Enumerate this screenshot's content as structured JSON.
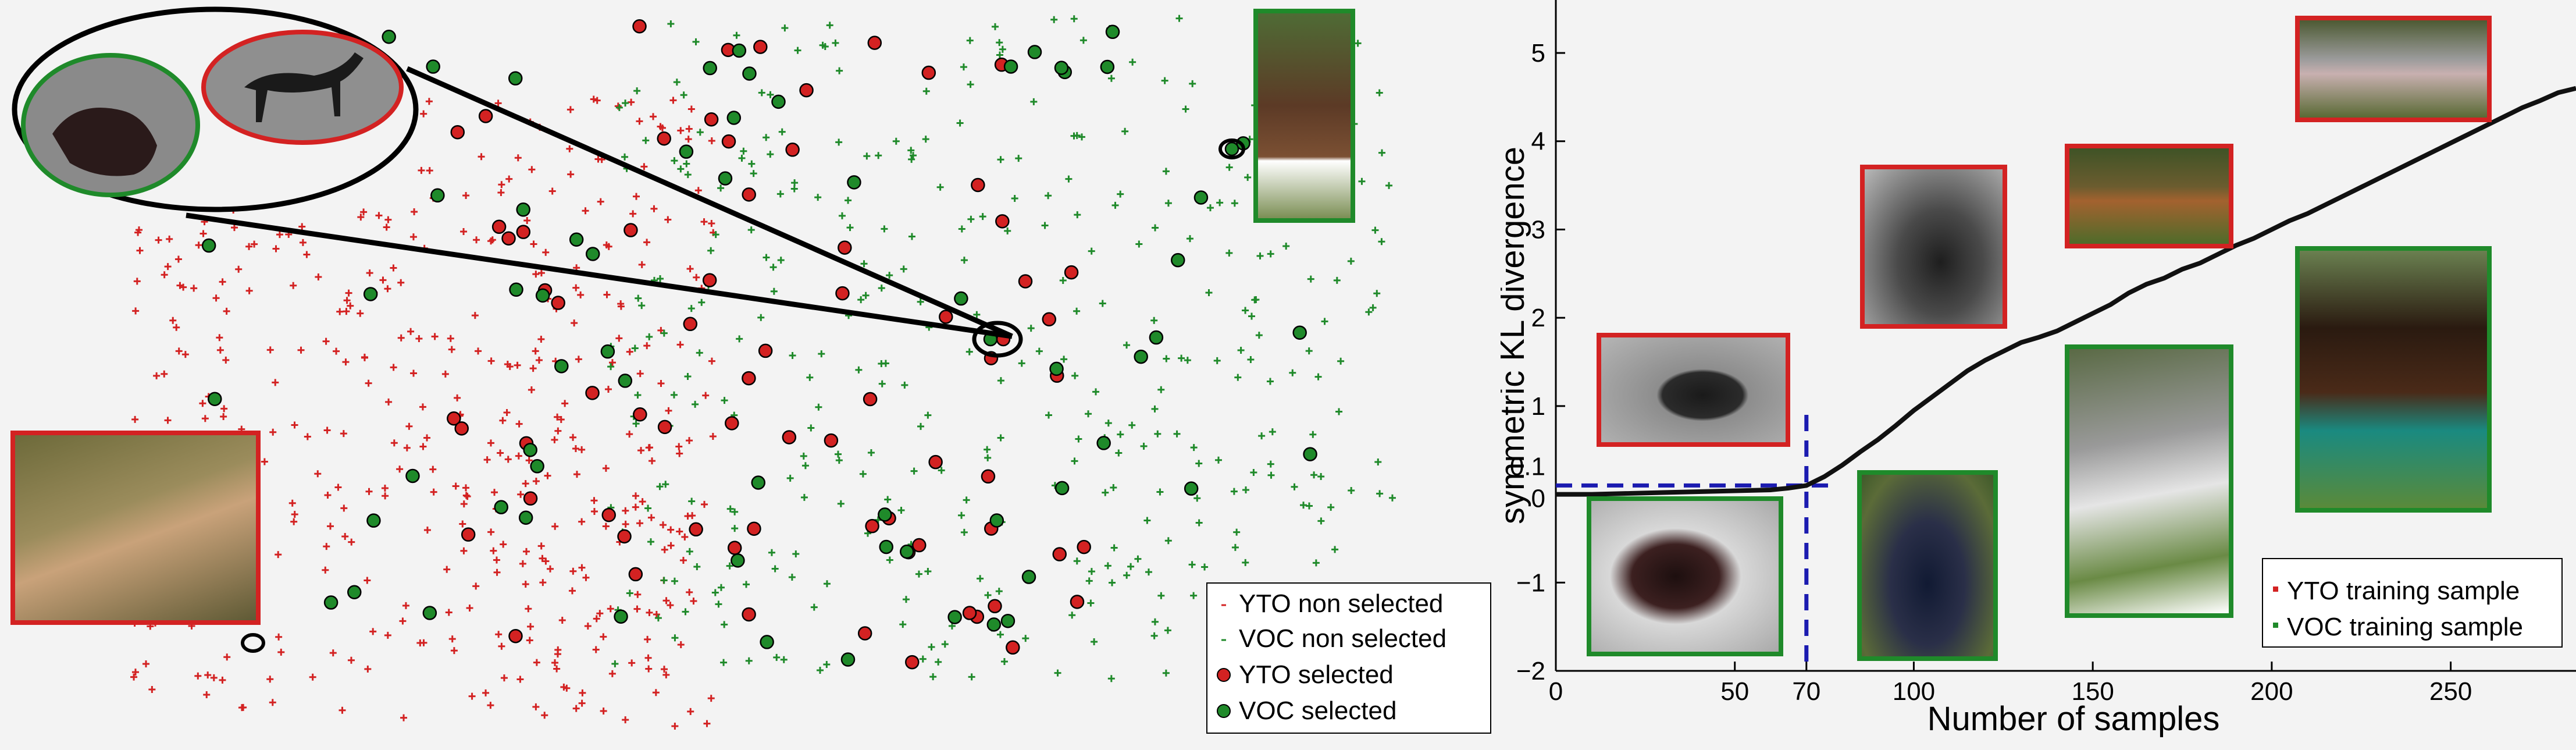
{
  "colors": {
    "yto": "#d32222",
    "voc": "#1f8a2a",
    "curve": "#111111",
    "threshold": "#1b1bb0",
    "background": "#f3f3f3"
  },
  "scatter_legend": {
    "yto_non_selected": "YTO non selected",
    "voc_non_selected": "VOC non selected",
    "yto_selected": "YTO selected",
    "voc_selected": "VOC selected"
  },
  "right_legend": {
    "yto_training": "YTO training sample",
    "voc_training": "VOC training sample"
  },
  "icons": [
    "horse-photo-thumbnail",
    "zoom-ellipse-callout"
  ],
  "chart_data": [
    {
      "type": "scatter",
      "description_source": "t-SNE style embedding, no axes printed",
      "series": [
        {
          "name": "YTO non selected",
          "marker": "plus",
          "color": "#d32222"
        },
        {
          "name": "VOC non selected",
          "marker": "plus",
          "color": "#1f8a2a"
        },
        {
          "name": "YTO selected",
          "marker": "filled-circle",
          "color": "#d32222"
        },
        {
          "name": "VOC selected",
          "marker": "filled-circle",
          "color": "#1f8a2a"
        }
      ],
      "legend_position": "bottom-right"
    },
    {
      "type": "line",
      "xlabel": "Number of samples",
      "ylabel": "symmetric KL divergence",
      "xlim": [
        0,
        285
      ],
      "ylim": [
        -2,
        5.6
      ],
      "xticks": [
        "0",
        "50",
        "70",
        "100",
        "150",
        "200",
        "250"
      ],
      "xtick_values": [
        0,
        50,
        70,
        100,
        150,
        200,
        250
      ],
      "yticks": [
        "−2",
        "−1",
        "0",
        "0.1",
        "1",
        "2",
        "3",
        "4",
        "5"
      ],
      "ytick_values": [
        -2,
        -1,
        0,
        0.1,
        1,
        2,
        3,
        4,
        5
      ],
      "threshold": {
        "x": 70,
        "y": 0.1,
        "style": "dashed"
      },
      "curve": {
        "x": [
          0,
          10,
          20,
          30,
          40,
          50,
          60,
          65,
          70,
          75,
          80,
          85,
          90,
          95,
          100,
          105,
          110,
          115,
          120,
          125,
          130,
          135,
          140,
          145,
          150,
          155,
          160,
          165,
          170,
          175,
          180,
          185,
          190,
          195,
          200,
          205,
          210,
          215,
          220,
          225,
          230,
          235,
          240,
          245,
          250,
          255,
          260,
          265,
          270,
          275,
          280,
          285
        ],
        "y": [
          0.0,
          0.0,
          0.01,
          0.02,
          0.03,
          0.04,
          0.05,
          0.07,
          0.1,
          0.2,
          0.33,
          0.48,
          0.62,
          0.78,
          0.95,
          1.1,
          1.25,
          1.4,
          1.52,
          1.62,
          1.72,
          1.78,
          1.85,
          1.95,
          2.05,
          2.15,
          2.28,
          2.38,
          2.45,
          2.55,
          2.62,
          2.72,
          2.82,
          2.9,
          3.0,
          3.1,
          3.18,
          3.28,
          3.38,
          3.48,
          3.58,
          3.68,
          3.78,
          3.88,
          3.98,
          4.08,
          4.18,
          4.28,
          4.38,
          4.46,
          4.55,
          4.6
        ]
      },
      "legend_position": "bottom-right"
    }
  ]
}
